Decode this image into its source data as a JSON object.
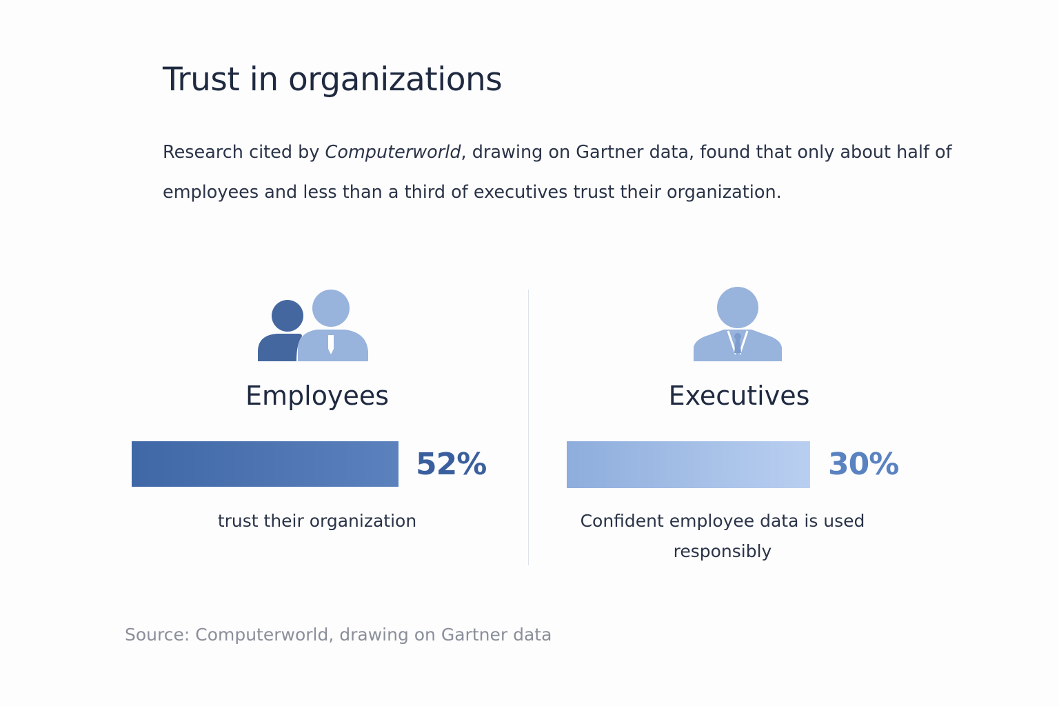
{
  "title": "Trust in organizations",
  "intro": {
    "before": "Research cited by ",
    "italic": "Computerworld",
    "after": ", drawing on Gartner data, found that only about half of employees and less than a third of executives trust their organization."
  },
  "colors": {
    "employees_bar": "#4a72b0",
    "executives_bar": "#9db8e0",
    "pct_employees": "#3b5f9e",
    "pct_executives": "#5a82c0"
  },
  "chart_data": {
    "type": "bar",
    "title": "Trust in organizations",
    "categories": [
      "Employees",
      "Executives"
    ],
    "values": [
      52,
      30
    ],
    "value_labels": [
      "52%",
      "30%"
    ],
    "descriptions": [
      "trust their organization",
      "Confident employee data is used responsibly"
    ],
    "icons": [
      "people-group-icon",
      "executive-person-icon"
    ],
    "xlabel": "",
    "ylabel": "",
    "ylim": [
      0,
      100
    ]
  },
  "source": "Source: Computerworld, drawing on Gartner data"
}
